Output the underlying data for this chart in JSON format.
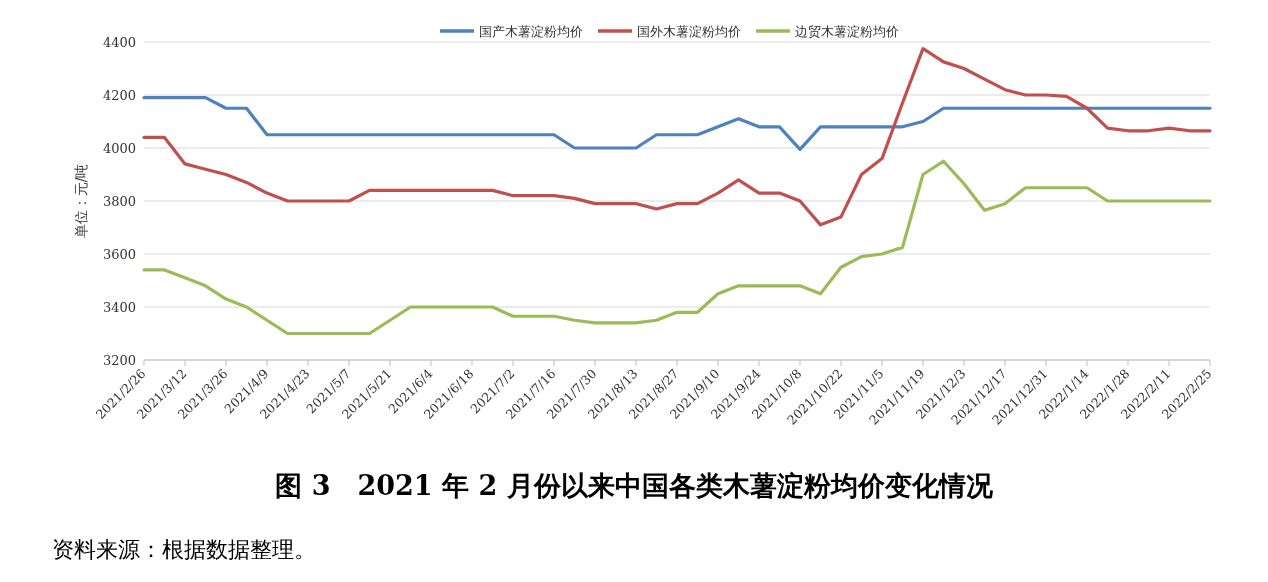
{
  "chart_data": {
    "type": "line",
    "title": "图 3　2021 年 2 月份以来中国各类木薯淀粉均价变化情况",
    "ylabel": "单位：元/吨",
    "categories": [
      "2021/2/26",
      null,
      "2021/3/12",
      null,
      "2021/3/26",
      null,
      "2021/4/9",
      null,
      "2021/4/23",
      null,
      "2021/5/7",
      null,
      "2021/5/21",
      null,
      "2021/6/4",
      null,
      "2021/6/18",
      null,
      "2021/7/2",
      null,
      "2021/7/16",
      null,
      "2021/7/30",
      null,
      "2021/8/13",
      null,
      "2021/8/27",
      null,
      "2021/9/10",
      null,
      "2021/9/24",
      null,
      "2021/10/8",
      null,
      "2021/10/22",
      null,
      "2021/11/5",
      null,
      "2021/11/19",
      null,
      "2021/12/3",
      null,
      "2021/12/17",
      null,
      "2021/12/31",
      null,
      "2022/1/14",
      null,
      "2022/1/28",
      null,
      "2022/2/11",
      null,
      "2022/2/25"
    ],
    "series": [
      {
        "name": "国产木薯淀粉均价",
        "color": "#4f81bd",
        "values": [
          4190,
          4190,
          4190,
          4190,
          4150,
          4150,
          4050,
          4050,
          4050,
          4050,
          4050,
          4050,
          4050,
          4050,
          4050,
          4050,
          4050,
          4050,
          4050,
          4050,
          4050,
          4000,
          4000,
          4000,
          4000,
          4050,
          4050,
          4050,
          4080,
          4110,
          4080,
          4080,
          3995,
          4080,
          4080,
          4080,
          4080,
          4080,
          4100,
          4150,
          4150,
          4150,
          4150,
          4150,
          4150,
          4150,
          4150,
          4150,
          4150,
          4150,
          4150,
          4150,
          4150
        ]
      },
      {
        "name": "国外木薯淀粉均价",
        "color": "#c0504d",
        "values": [
          4040,
          4040,
          3940,
          3920,
          3900,
          3870,
          3830,
          3800,
          3800,
          3800,
          3800,
          3840,
          3840,
          3840,
          3840,
          3840,
          3840,
          3840,
          3820,
          3820,
          3820,
          3810,
          3790,
          3790,
          3790,
          3770,
          3790,
          3790,
          3830,
          3880,
          3830,
          3830,
          3800,
          3710,
          3740,
          3900,
          3960,
          4170,
          4375,
          4325,
          4300,
          4260,
          4220,
          4200,
          4200,
          4195,
          4150,
          4075,
          4065,
          4065,
          4075,
          4065,
          4065
        ]
      },
      {
        "name": "边贸木薯淀粉均价",
        "color": "#9bbb59",
        "values": [
          3540,
          3540,
          3510,
          3480,
          3430,
          3400,
          3350,
          3300,
          3300,
          3300,
          3300,
          3300,
          3350,
          3400,
          3400,
          3400,
          3400,
          3400,
          3365,
          3365,
          3365,
          3350,
          3340,
          3340,
          3340,
          3350,
          3380,
          3380,
          3450,
          3480,
          3480,
          3480,
          3480,
          3450,
          3550,
          3590,
          3600,
          3625,
          3900,
          3950,
          3865,
          3765,
          3790,
          3850,
          3850,
          3850,
          3850,
          3800,
          3800,
          3800,
          3800,
          3800,
          3800
        ]
      }
    ],
    "ylim": [
      3200,
      4400
    ],
    "yticks": [
      3200,
      3400,
      3600,
      3800,
      4000,
      4200,
      4400
    ],
    "grid": "y",
    "legend": "top",
    "annotations": [
      "资料来源：根据数据整理。"
    ]
  }
}
